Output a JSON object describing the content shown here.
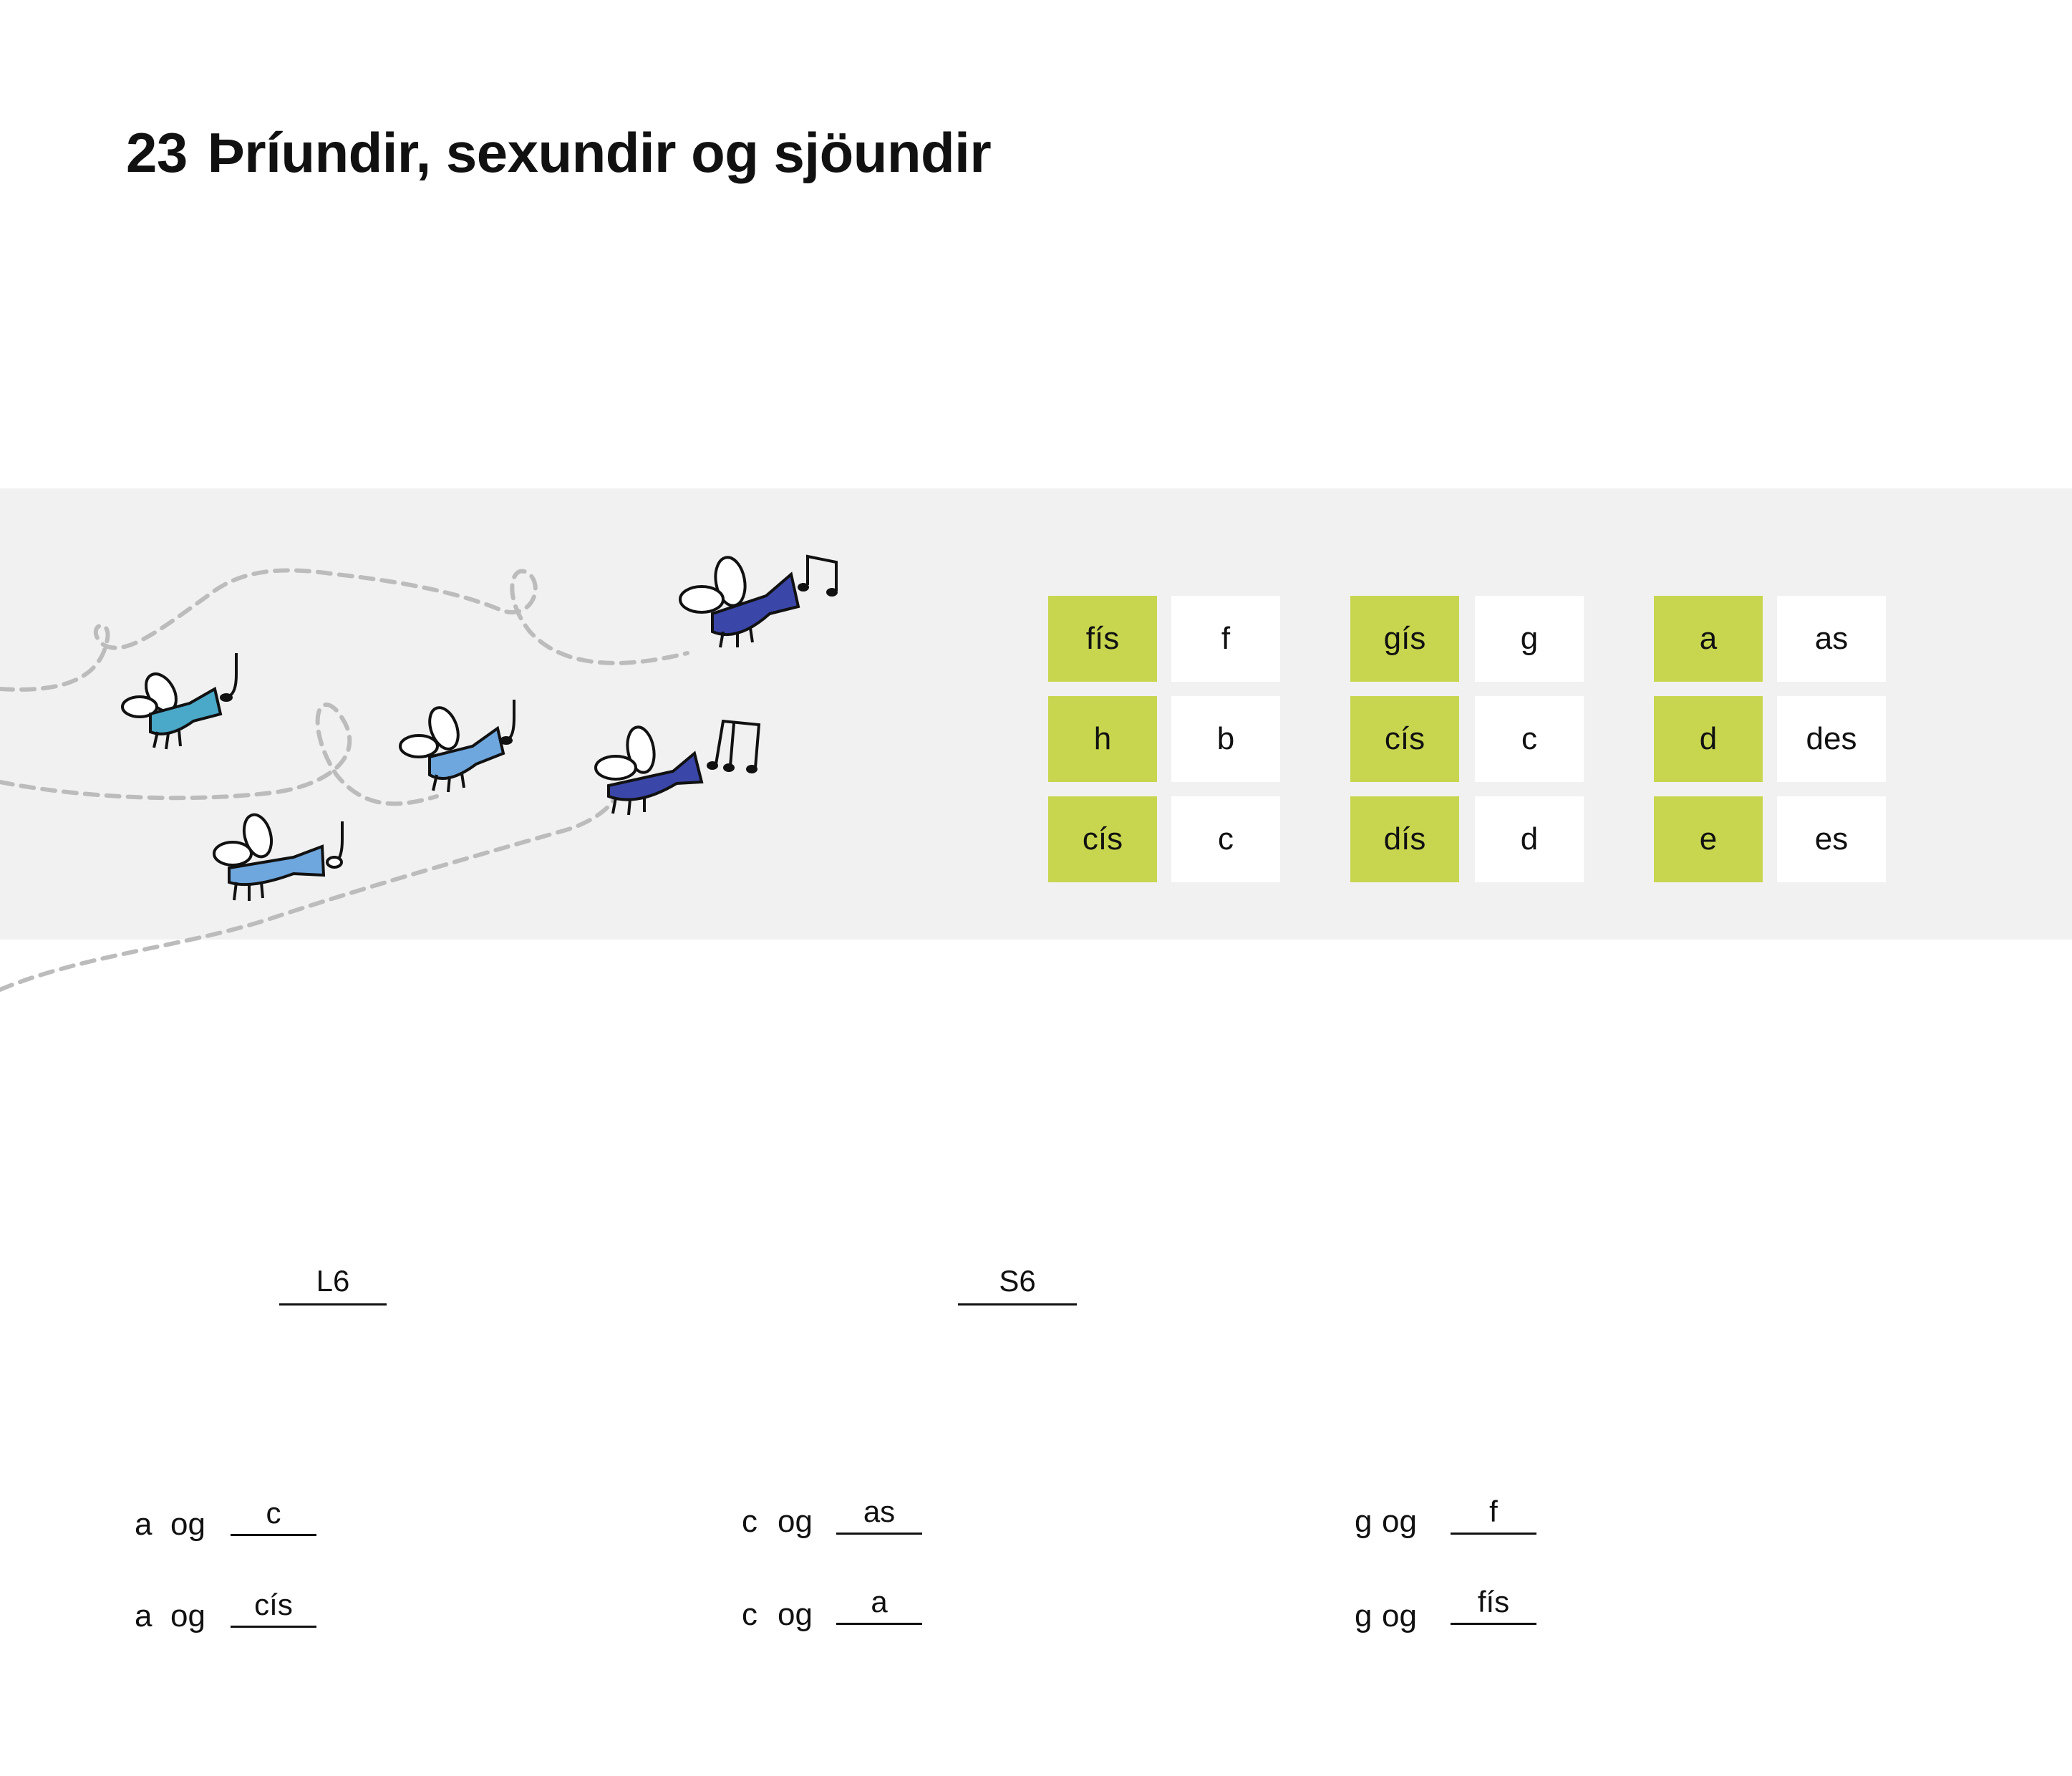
{
  "title": {
    "number": "23",
    "text": "Þríundir, sexundir og sjöundir"
  },
  "illustration": {
    "icons": [
      "bee-with-trumpet-icon",
      "music-note-icon",
      "dashed-flight-path"
    ]
  },
  "tables": [
    {
      "rows": [
        {
          "green": "fís",
          "white": "f"
        },
        {
          "green": "h",
          "white": "b"
        },
        {
          "green": "cís",
          "white": "c"
        }
      ]
    },
    {
      "rows": [
        {
          "green": "gís",
          "white": "g"
        },
        {
          "green": "cís",
          "white": "c"
        },
        {
          "green": "dís",
          "white": "d"
        }
      ]
    },
    {
      "rows": [
        {
          "green": "a",
          "white": "as"
        },
        {
          "green": "d",
          "white": "des"
        },
        {
          "green": "e",
          "white": "es"
        }
      ]
    }
  ],
  "interval_answers": {
    "first": "L6",
    "second": "S6"
  },
  "exercises": [
    {
      "left": "a",
      "og": "og",
      "answer": "c"
    },
    {
      "left": "a",
      "og": "og",
      "answer": "cís"
    },
    {
      "left": "c",
      "og": "og",
      "answer": "as"
    },
    {
      "left": "c",
      "og": "og",
      "answer": "a"
    },
    {
      "left": "g",
      "og": "og",
      "answer": "f"
    },
    {
      "left": "g",
      "og": "og",
      "answer": "fís"
    }
  ],
  "colors": {
    "green": "#c8d64f",
    "band": "#f1f1f1",
    "bee_dark": "#3a46a8",
    "bee_light": "#6ea6de",
    "bee_teal": "#4aa8c8"
  }
}
